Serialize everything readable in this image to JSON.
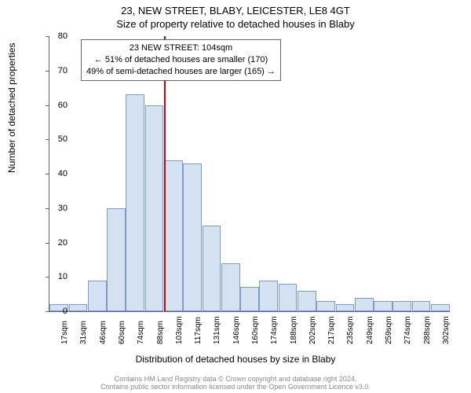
{
  "chart": {
    "type": "histogram",
    "title": "23, NEW STREET, BLABY, LEICESTER, LE8 4GT",
    "subtitle": "Size of property relative to detached houses in Blaby",
    "ylabel": "Number of detached properties",
    "xlabel": "Distribution of detached houses by size in Blaby",
    "ylim": [
      0,
      80
    ],
    "ytick_step": 10,
    "x_categories": [
      "17sqm",
      "31sqm",
      "46sqm",
      "60sqm",
      "74sqm",
      "88sqm",
      "103sqm",
      "117sqm",
      "131sqm",
      "146sqm",
      "160sqm",
      "174sqm",
      "188sqm",
      "202sqm",
      "217sqm",
      "235sqm",
      "249sqm",
      "259sqm",
      "274sqm",
      "288sqm",
      "302sqm"
    ],
    "values": [
      2,
      2,
      9,
      30,
      63,
      60,
      44,
      43,
      25,
      14,
      7,
      9,
      8,
      6,
      3,
      2,
      4,
      3,
      3,
      3,
      2
    ],
    "bar_fill": "#d5e2f1",
    "bar_stroke": "#7a9cc6",
    "background_color": "#ffffff",
    "reference_line": {
      "x_index": 6,
      "color": "#cc0000",
      "width": 2
    },
    "annotation": {
      "line1": "23 NEW STREET: 104sqm",
      "line2": "← 51% of detached houses are smaller (170)",
      "line3": "49% of semi-detached houses are larger (165) →"
    },
    "footer_line1": "Contains HM Land Registry data © Crown copyright and database right 2024.",
    "footer_line2": "Contains public sector information licensed under the Open Government Licence v3.0.",
    "title_fontsize": 13,
    "label_fontsize": 12,
    "tick_fontsize": 11
  }
}
